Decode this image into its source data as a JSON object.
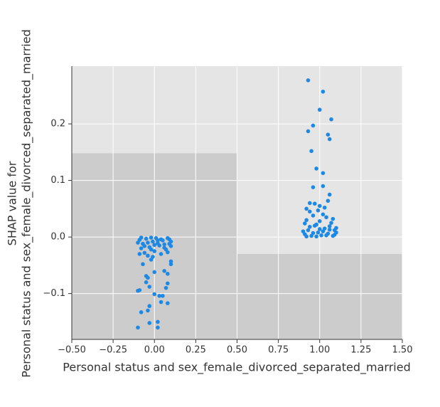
{
  "chart_data": {
    "type": "scatter",
    "xlabel": "Personal status and sex_female_divorced_separated_married",
    "ylabel": [
      "SHAP value for",
      "Personal status and sex_female_divorced_separated_married"
    ],
    "xlim": [
      -0.5,
      1.5
    ],
    "ylim": [
      -0.181,
      0.302
    ],
    "xticks": [
      {
        "value": -0.5,
        "label": "−0.50"
      },
      {
        "value": -0.25,
        "label": "−0.25"
      },
      {
        "value": 0,
        "label": "0.00"
      },
      {
        "value": 0.25,
        "label": "0.25"
      },
      {
        "value": 0.5,
        "label": "0.50"
      },
      {
        "value": 0.75,
        "label": "0.75"
      },
      {
        "value": 1,
        "label": "1.00"
      },
      {
        "value": 1.25,
        "label": "1.25"
      },
      {
        "value": 1.5,
        "label": "1.50"
      }
    ],
    "yticks": [
      {
        "value": -0.1,
        "label": "−0.1"
      },
      {
        "value": 0,
        "label": "0.0"
      },
      0.1,
      0.2
    ],
    "grid": true,
    "histogram": {
      "bins": [
        -0.5,
        0.5,
        1.5
      ],
      "tops": [
        0.148,
        -0.03
      ],
      "color": "#cccccc"
    },
    "color": "#1e88e5",
    "x": [
      0.93,
      1.02,
      1.0,
      1.07,
      0.96,
      0.93,
      1.05,
      1.06,
      0.95,
      0.98,
      1.02,
      0.96,
      1.02,
      1.06,
      1.05,
      0.94,
      0.97,
      1.0,
      1.03,
      0.92,
      0.91,
      0.93,
      0.95,
      0.97,
      0.99,
      1.01,
      1.03,
      1.05,
      1.07,
      1.09,
      0.92,
      0.94,
      0.96,
      0.98,
      1.0,
      1.02,
      1.04,
      1.06,
      1.08,
      1.1,
      0.9,
      0.94,
      0.98,
      1.02,
      1.06,
      1.1,
      0.92,
      1.0,
      1.08,
      0.96,
      1.04,
      0.99,
      1.09,
      0.91,
      -0.1,
      0.02,
      0.02,
      -0.03,
      -0.08,
      -0.04,
      -0.03,
      0.04,
      0.08,
      0.03,
      0.05,
      0.0,
      -0.09,
      -0.1,
      0.07,
      -0.03,
      0.08,
      -0.05,
      -0.04,
      -0.05,
      0.08,
      0.06,
      0.0,
      0.1,
      -0.07,
      0.1,
      -0.02,
      -0.09,
      -0.07,
      -0.05,
      -0.03,
      -0.01,
      0.01,
      0.03,
      0.05,
      0.07,
      0.09,
      -0.08,
      -0.06,
      -0.04,
      -0.02,
      0.0,
      0.02,
      0.04,
      0.06,
      0.08,
      0.1,
      -0.1,
      -0.06,
      -0.02,
      0.02,
      0.06,
      0.1,
      -0.08,
      0.0,
      0.08,
      -0.04,
      0.04,
      -0.01,
      0.09,
      -0.09
    ],
    "y": [
      0.277,
      0.257,
      0.225,
      0.208,
      0.197,
      0.187,
      0.181,
      0.173,
      0.152,
      0.121,
      0.113,
      0.088,
      0.09,
      0.075,
      0.064,
      0.06,
      0.059,
      0.055,
      0.052,
      0.05,
      0.005,
      0.012,
      0.002,
      0.02,
      0.008,
      0.003,
      0.015,
      0.006,
      0.025,
      0.004,
      0.03,
      0.018,
      0.038,
      0.001,
      0.028,
      0.01,
      0.035,
      0.013,
      0.002,
      0.016,
      0.01,
      0.045,
      0.022,
      0.04,
      0.019,
      0.008,
      0.001,
      0.014,
      0.032,
      0.007,
      0.003,
      0.047,
      0.012,
      0.024,
      -0.16,
      -0.16,
      -0.15,
      -0.152,
      -0.133,
      -0.13,
      -0.122,
      -0.115,
      -0.117,
      -0.104,
      -0.104,
      -0.101,
      -0.094,
      -0.095,
      -0.09,
      -0.088,
      -0.082,
      -0.08,
      -0.072,
      -0.069,
      -0.065,
      -0.06,
      -0.062,
      -0.048,
      -0.048,
      -0.043,
      -0.04,
      -0.005,
      -0.012,
      -0.003,
      -0.018,
      -0.008,
      -0.002,
      -0.015,
      -0.006,
      -0.022,
      -0.004,
      -0.02,
      -0.028,
      -0.01,
      -0.001,
      -0.025,
      -0.011,
      -0.03,
      -0.013,
      -0.002,
      -0.016,
      -0.01,
      -0.016,
      -0.022,
      -0.006,
      -0.019,
      -0.008,
      -0.001,
      -0.014,
      -0.027,
      -0.033,
      -0.004,
      -0.035,
      -0.012,
      -0.03
    ]
  }
}
